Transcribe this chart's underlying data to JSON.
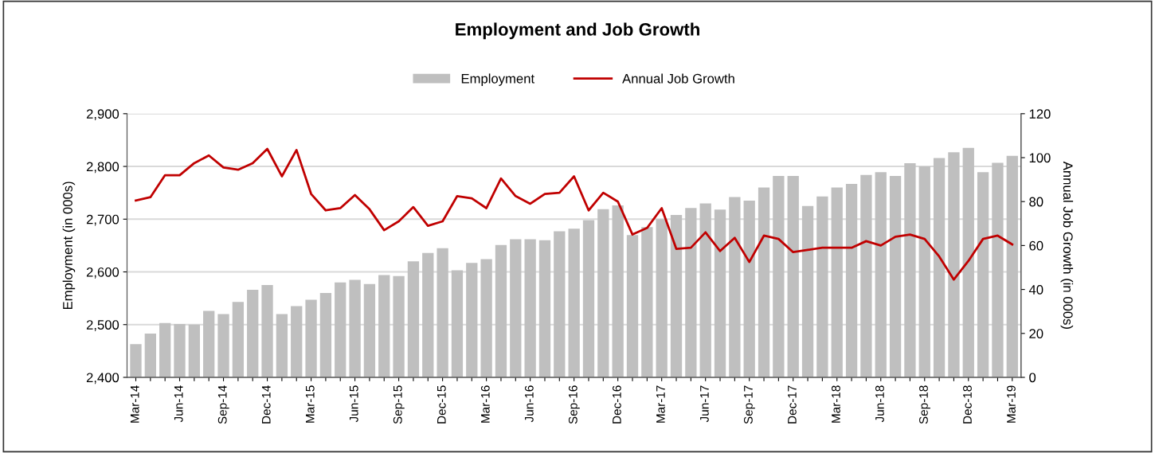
{
  "chart_data": {
    "type": "bar",
    "title": "Employment and Job Growth",
    "ylabel": "Employment (in 000s)",
    "y2label": "Annual Job Growth (in 000s)",
    "categories": [
      "Mar-14",
      null,
      null,
      "Jun-14",
      null,
      null,
      "Sep-14",
      null,
      null,
      "Dec-14",
      null,
      null,
      "Mar-15",
      null,
      null,
      "Jun-15",
      null,
      null,
      "Sep-15",
      null,
      null,
      "Dec-15",
      null,
      null,
      "Mar-16",
      null,
      null,
      "Jun-16",
      null,
      null,
      "Sep-16",
      null,
      null,
      "Dec-16",
      null,
      null,
      "Mar-17",
      null,
      null,
      "Jun-17",
      null,
      null,
      "Sep-17",
      null,
      null,
      "Dec-17",
      null,
      null,
      "Mar-18",
      null,
      null,
      "Jun-18",
      null,
      null,
      "Sep-18",
      null,
      null,
      "Dec-18",
      null,
      null,
      "Mar-19"
    ],
    "series": [
      {
        "name": "Employment",
        "color": "#bfbfbf",
        "values": [
          2463,
          2483,
          2503,
          2501,
          2500,
          2526,
          2520,
          2543,
          2566,
          2575,
          2520,
          2535,
          2547,
          2560,
          2580,
          2585,
          2577,
          2594,
          2592,
          2620,
          2636,
          2645,
          2603,
          2617,
          2624,
          2651,
          2662,
          2662,
          2660,
          2677,
          2682,
          2698,
          2719,
          2726,
          2670,
          2685,
          2700,
          2708,
          2721,
          2730,
          2718,
          2742,
          2735,
          2760,
          2782,
          2782,
          2725,
          2743,
          2760,
          2767,
          2784,
          2789,
          2782,
          2806,
          2800,
          2816,
          2827,
          2835,
          2789,
          2807,
          2820
        ]
      },
      {
        "name": "Annual Job Growth",
        "type": "line",
        "axis": "y2",
        "color": "#c00000",
        "values": [
          80.5,
          82,
          92,
          92,
          97.5,
          101,
          95.5,
          94.5,
          97.5,
          104,
          91.5,
          103.5,
          83.5,
          76,
          77,
          83,
          76.5,
          67,
          71,
          77.5,
          69,
          71,
          82.5,
          81.5,
          77,
          90.5,
          82.5,
          79,
          83.5,
          84,
          91.5,
          76,
          84,
          80,
          65,
          68,
          77,
          58.5,
          59,
          66,
          57.5,
          63.5,
          52.5,
          64.5,
          63,
          57,
          58,
          59,
          59,
          59,
          62,
          60,
          64,
          65,
          63,
          55,
          44.5,
          53,
          63,
          64.5,
          60.5
        ]
      }
    ],
    "ylim": [
      2400,
      2900
    ],
    "yticks": [
      {
        "value": 2400,
        "label": "2,400"
      },
      {
        "value": 2500,
        "label": "2,500"
      },
      {
        "value": 2600,
        "label": "2,600"
      },
      {
        "value": 2700,
        "label": "2,700"
      },
      {
        "value": 2800,
        "label": "2,800"
      },
      {
        "value": 2900,
        "label": "2,900"
      }
    ],
    "y2lim": [
      0,
      120
    ],
    "y2ticks": [
      0,
      20,
      40,
      60,
      80,
      100,
      120
    ],
    "grid": "y",
    "legend": "top",
    "line_style": "solid",
    "marker": "none"
  }
}
